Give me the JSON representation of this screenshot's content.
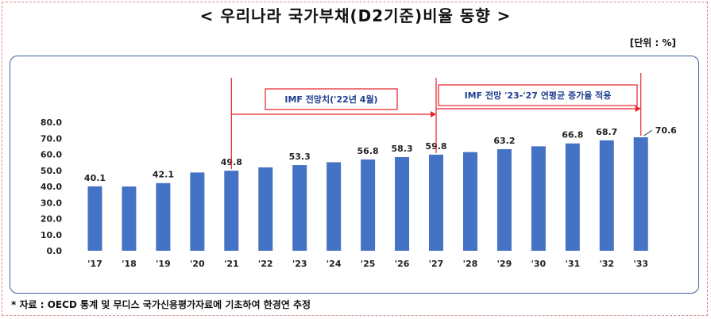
{
  "title": "< 우리나라 국가부채(D2기준)비율 동향 >",
  "unit": "[단위 : %]",
  "source": "* 자료 : OECD 통계 및 무디스 국가신용평가자료에 기초하여 한경연 추정",
  "colors": {
    "bar": "#4472c4",
    "marker": "#e8202a",
    "annotation_text": "#1f3f8f",
    "panel_border": "#3b5f9a"
  },
  "annotations": {
    "forecast_imf": "IMF 전망치('22년 4월)",
    "forecast_avg": "IMF 전망 '23-'27 연평균 증가율 적용"
  },
  "chart_data": {
    "type": "bar",
    "title": "< 우리나라 국가부채(D2기준)비율 동향 >",
    "ylabel": "",
    "xlabel": "",
    "ylim": [
      0,
      80
    ],
    "yticks": [
      "0.0",
      "10.0",
      "20.0",
      "30.0",
      "40.0",
      "50.0",
      "60.0",
      "70.0",
      "80.0"
    ],
    "categories": [
      "'17",
      "'18",
      "'19",
      "'20",
      "'21",
      "'22",
      "'23",
      "'24",
      "'25",
      "'26",
      "'27",
      "'28",
      "'29",
      "'30",
      "'31",
      "'32",
      "'33"
    ],
    "values": [
      40.1,
      40.0,
      42.1,
      48.7,
      49.8,
      51.9,
      53.3,
      55.1,
      56.8,
      58.3,
      59.8,
      61.4,
      63.2,
      65.0,
      66.8,
      68.7,
      70.6
    ],
    "data_labels": [
      "40.1",
      "",
      "42.1",
      "",
      "49.8",
      "",
      "53.3",
      "",
      "56.8",
      "58.3",
      "59.8",
      "",
      "63.2",
      "",
      "66.8",
      "68.7",
      "70.6"
    ],
    "grid": false,
    "legend": "none",
    "markers_at": [
      "'21",
      "'27",
      "'33"
    ]
  }
}
